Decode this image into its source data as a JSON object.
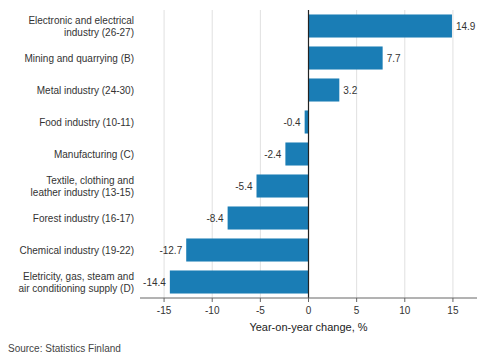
{
  "chart_data": {
    "type": "bar",
    "orientation": "horizontal",
    "categories": [
      "Eletricity, gas, steam and\nair conditioning supply (D)",
      "Chemical industry (19-22)",
      "Forest industry (16-17)",
      "Textile, clothing and\nleather industry (13-15)",
      "Manufacturing (C)",
      "Food industry (10-11)",
      "Metal industry (24-30)",
      "Mining and quarrying (B)",
      "Electronic and electrical\nindustry (26-27)"
    ],
    "values": [
      -14.4,
      -12.7,
      -8.4,
      -5.4,
      -2.4,
      -0.4,
      3.2,
      7.7,
      14.9
    ],
    "color": "#1a7db5",
    "xlabel": "Year-on-year change, %",
    "annotations": [
      "Source: Statistics Finland"
    ],
    "xlim": [
      -17.5,
      17.5
    ],
    "xticks": [
      -15,
      -10,
      -5,
      0,
      5,
      10,
      15
    ],
    "grid": true,
    "data_labels": true
  }
}
